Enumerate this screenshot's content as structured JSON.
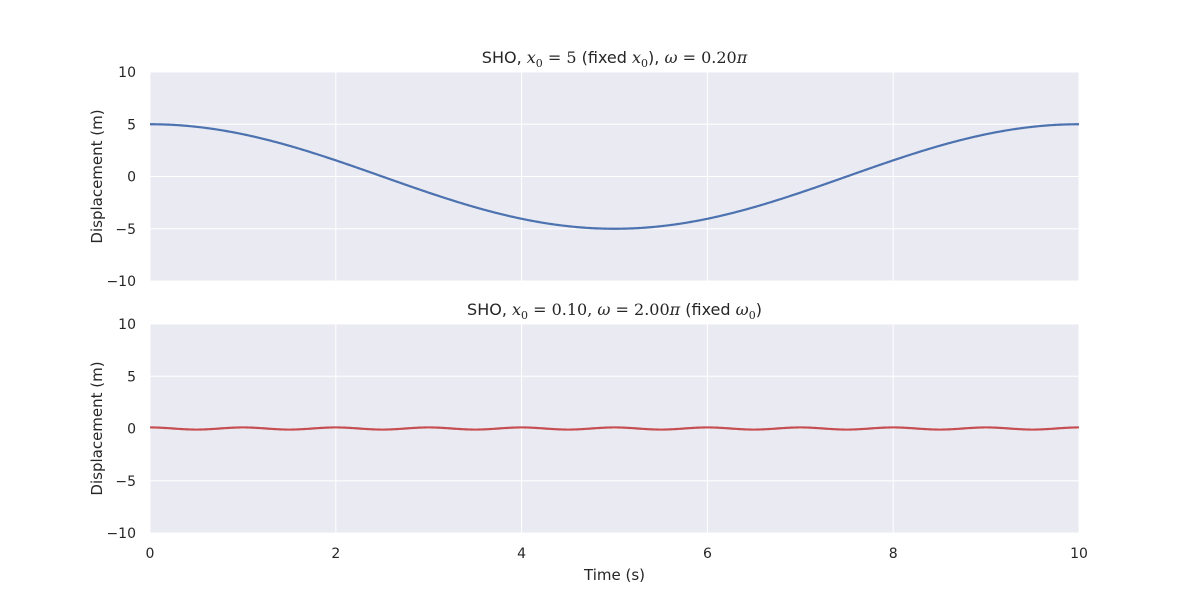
{
  "chart_data": [
    {
      "type": "line",
      "title": {
        "prefix": "SHO, ",
        "var1": "x",
        "sub1": "0",
        "eq1": " = 5",
        "mid": " (fixed ",
        "fixvar": "x",
        "fixsub": "0",
        "close": "), ",
        "omega": "ω",
        "eq2": " = 0.20",
        "pi": "π"
      },
      "xlabel": "",
      "ylabel": "Displacement (m)",
      "xlim": [
        0,
        10
      ],
      "ylim": [
        -10,
        10
      ],
      "xticks": [
        0,
        2,
        4,
        6,
        8,
        10
      ],
      "yticks": [
        -10,
        -5,
        0,
        5,
        10
      ],
      "ytick_labels": [
        "−10",
        "−5",
        "0",
        "5",
        "10"
      ],
      "xtick_labels_visible": false,
      "grid": true,
      "series": [
        {
          "function": "cos",
          "amplitude": 5,
          "omega_over_pi": 0.2,
          "x": [
            0,
            10
          ],
          "color": "#4c72b0"
        }
      ]
    },
    {
      "type": "line",
      "title": {
        "prefix": "SHO, ",
        "var1": "x",
        "sub1": "0",
        "eq1": " = 0.10, ",
        "omega": "ω",
        "eq2": " = 2.00",
        "pi": "π",
        "mid": " (fixed ",
        "fixvar": "ω",
        "fixsub": "0",
        "close": ")"
      },
      "xlabel": "Time (s)",
      "ylabel": "Displacement (m)",
      "xlim": [
        0,
        10
      ],
      "ylim": [
        -10,
        10
      ],
      "xticks": [
        0,
        2,
        4,
        6,
        8,
        10
      ],
      "xtick_labels": [
        "0",
        "2",
        "4",
        "6",
        "8",
        "10"
      ],
      "yticks": [
        -10,
        -5,
        0,
        5,
        10
      ],
      "ytick_labels": [
        "−10",
        "−5",
        "0",
        "5",
        "10"
      ],
      "xtick_labels_visible": true,
      "grid": true,
      "series": [
        {
          "function": "cos",
          "amplitude": 0.1,
          "omega_over_pi": 2.0,
          "x": [
            0,
            10
          ],
          "color": "#c44e52"
        }
      ]
    }
  ]
}
